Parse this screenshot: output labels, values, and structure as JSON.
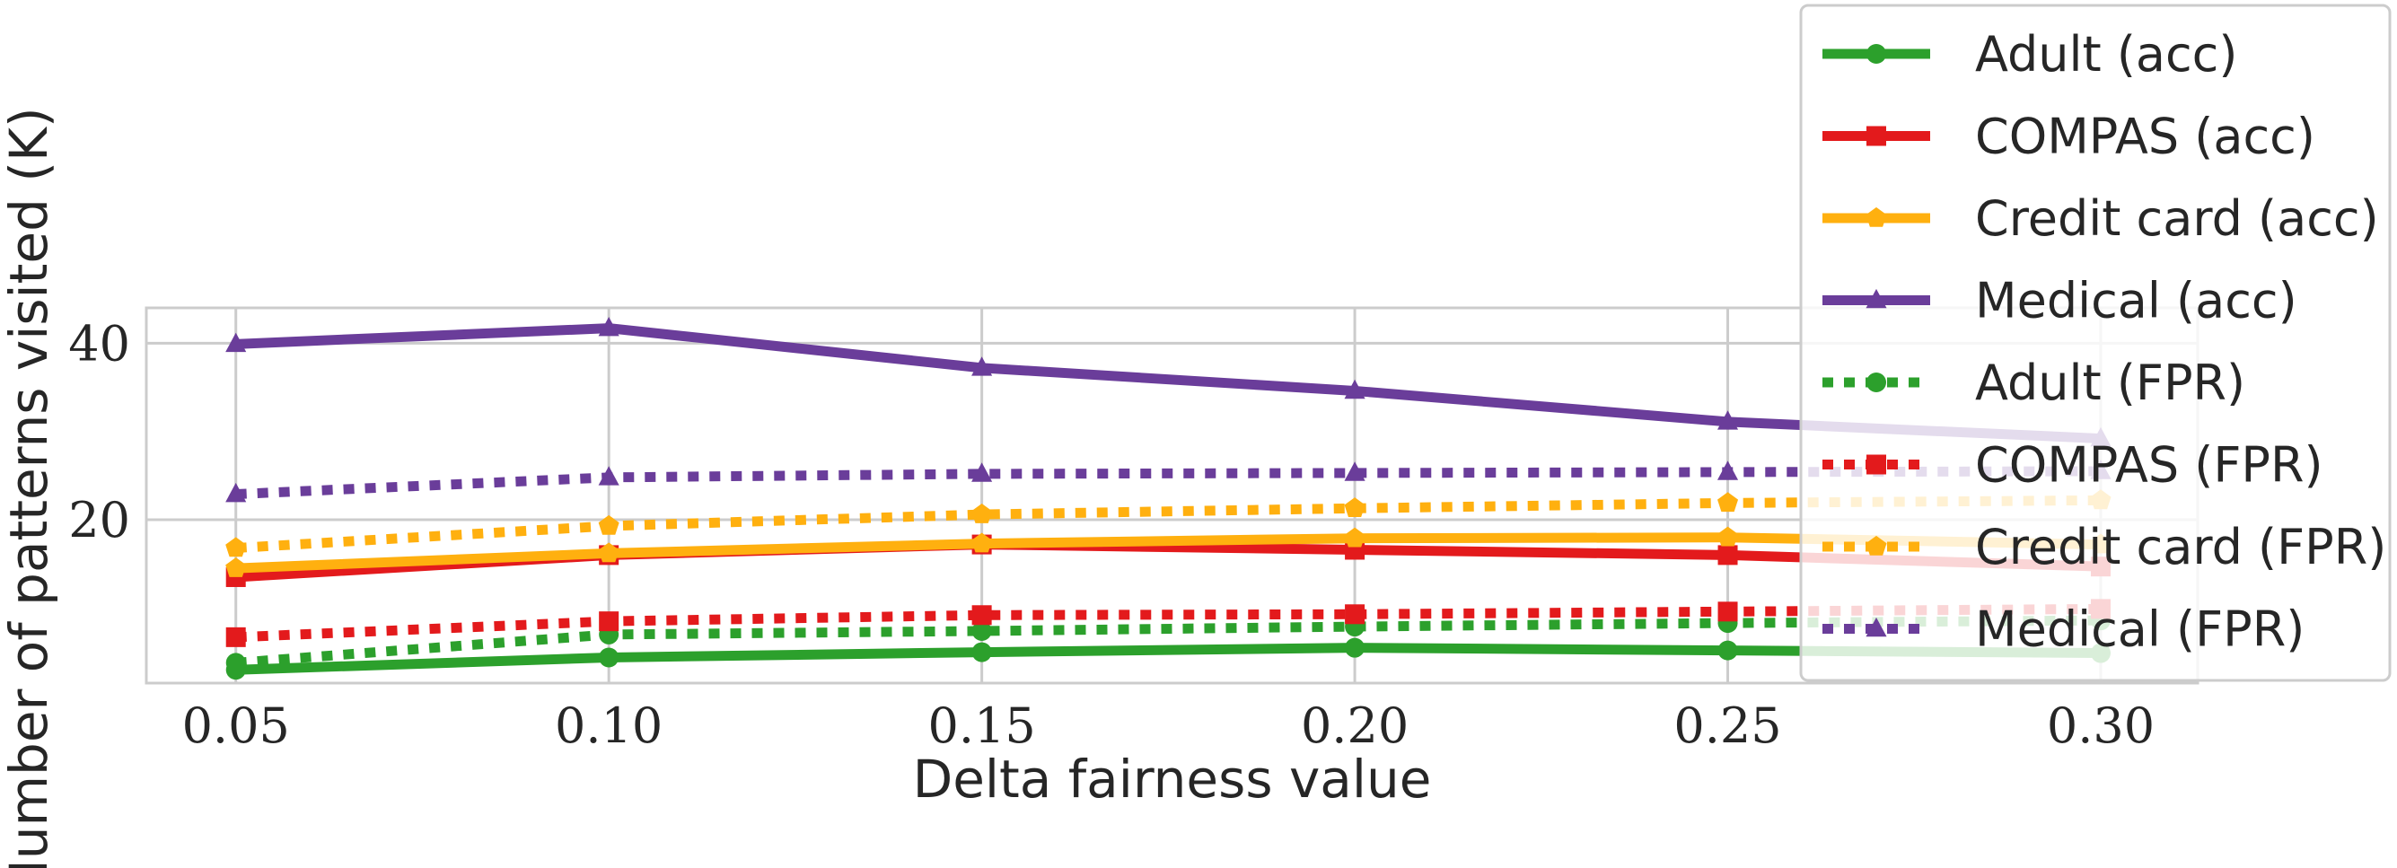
{
  "chart_data": {
    "type": "line",
    "title": "",
    "xlabel": "Delta fairness value",
    "ylabel": "Number of patterns visited (K)",
    "x": [
      0.05,
      0.1,
      0.15,
      0.2,
      0.25,
      0.3
    ],
    "x_tick_labels": [
      "0.05",
      "0.10",
      "0.15",
      "0.20",
      "0.25",
      "0.30"
    ],
    "y_ticks": [
      20,
      40
    ],
    "y_tick_labels": [
      "20",
      "40"
    ],
    "xlim": [
      0.038,
      0.313
    ],
    "ylim": [
      1.5,
      44
    ],
    "grid": true,
    "legend_position": "upper-right",
    "series": [
      {
        "name": "Adult (acc)",
        "color": "#2ca02c",
        "style": "solid",
        "marker": "circle",
        "values": [
          3.0,
          4.4,
          5.0,
          5.5,
          5.2,
          4.9
        ]
      },
      {
        "name": "COMPAS (acc)",
        "color": "#e31a1c",
        "style": "solid",
        "marker": "square",
        "values": [
          13.5,
          16.0,
          17.2,
          16.6,
          16.0,
          14.7
        ]
      },
      {
        "name": "Credit card (acc)",
        "color": "#ffb00f",
        "style": "solid",
        "marker": "pentagon",
        "values": [
          14.5,
          16.2,
          17.3,
          17.9,
          18.0,
          17.2
        ]
      },
      {
        "name": "Medical (acc)",
        "color": "#6a3d9a",
        "style": "solid",
        "marker": "triangle",
        "values": [
          39.9,
          41.7,
          37.2,
          34.6,
          31.1,
          29.2
        ]
      },
      {
        "name": "Adult (FPR)",
        "color": "#2ca02c",
        "style": "dotted",
        "marker": "circle",
        "values": [
          3.8,
          7.0,
          7.4,
          7.9,
          8.3,
          8.6
        ]
      },
      {
        "name": "COMPAS (FPR)",
        "color": "#e31a1c",
        "style": "dotted",
        "marker": "square",
        "values": [
          6.7,
          8.5,
          9.2,
          9.3,
          9.6,
          9.9
        ]
      },
      {
        "name": "Credit card (FPR)",
        "color": "#ffb00f",
        "style": "dotted",
        "marker": "pentagon",
        "values": [
          16.8,
          19.3,
          20.6,
          21.3,
          21.9,
          22.2
        ]
      },
      {
        "name": "Medical (FPR)",
        "color": "#6a3d9a",
        "style": "dotted",
        "marker": "triangle",
        "values": [
          22.9,
          24.8,
          25.2,
          25.3,
          25.4,
          25.5
        ]
      }
    ]
  }
}
